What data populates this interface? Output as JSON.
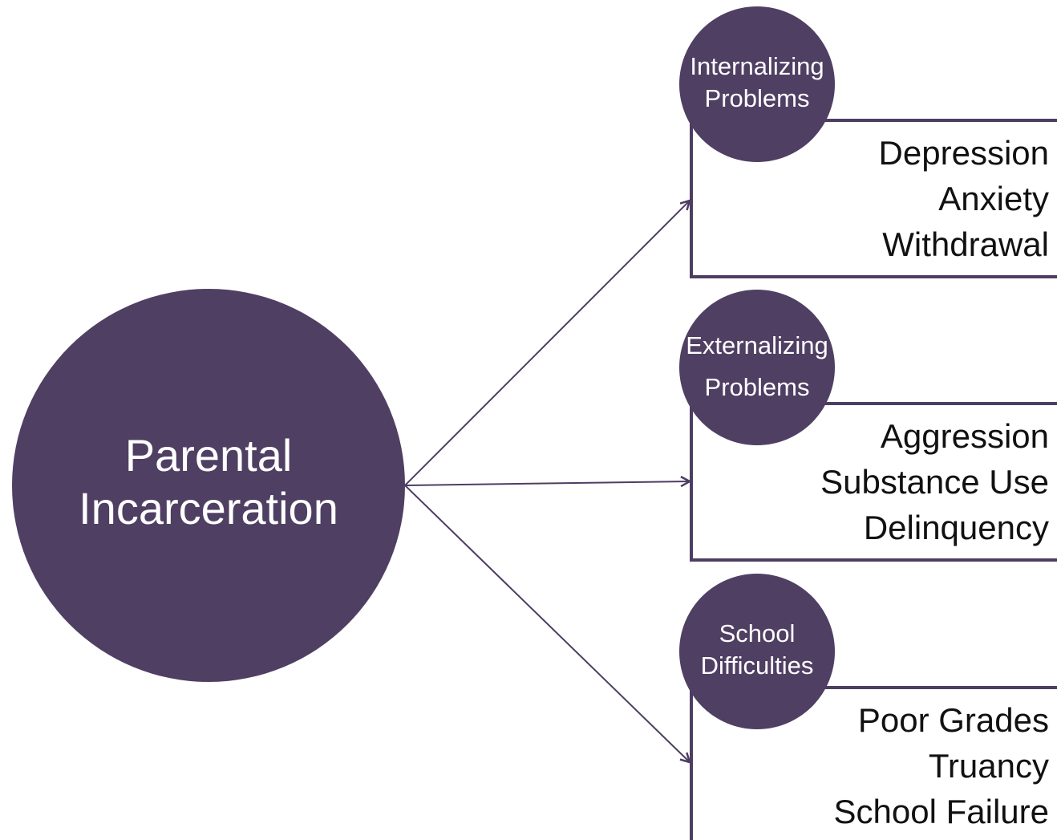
{
  "center": {
    "label": [
      "Parental",
      "Incarceration"
    ]
  },
  "groups": [
    {
      "label": [
        "Internalizing",
        "Problems"
      ],
      "items": [
        "Depression",
        "Anxiety",
        "Withdrawal"
      ]
    },
    {
      "label": [
        "Externalizing",
        "Problems"
      ],
      "items": [
        "Aggression",
        "Substance Use",
        "Delinquency"
      ]
    },
    {
      "label": [
        "School",
        "Difficulties"
      ],
      "items": [
        "Poor Grades",
        "Truancy",
        "School Failure"
      ]
    }
  ]
}
